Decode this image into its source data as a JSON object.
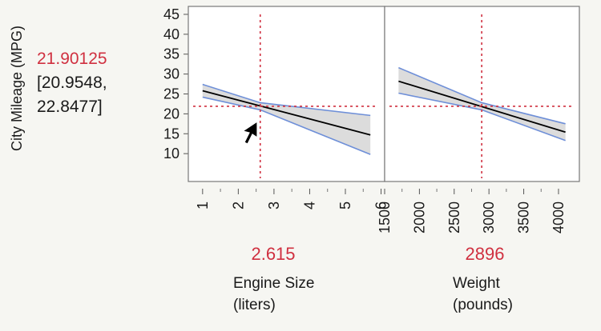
{
  "response": {
    "label": "City Mileage (MPG)",
    "predicted": "21.90125",
    "ci_line1": "[20.9548,",
    "ci_line2": "22.8477]"
  },
  "colors": {
    "current": "#d03040",
    "band_fill": "#dcdcdc",
    "band_edge": "#6e8fd8",
    "line": "#000000"
  },
  "chart_data": [
    {
      "type": "line",
      "xlabel": "Engine Size (liters)",
      "xlabel_lines": [
        "Engine Size",
        "(liters)"
      ],
      "current_x": "2.615",
      "current_y": 21.90125,
      "x_ticks": [
        1,
        2,
        3,
        4,
        5,
        6
      ],
      "xlim": [
        0.6,
        6.1
      ],
      "y_ticks": [
        10,
        15,
        20,
        25,
        30,
        35,
        40,
        45
      ],
      "ylim": [
        3,
        47
      ],
      "series": [
        {
          "role": "prediction",
          "x": [
            1,
            5.7
          ],
          "y": [
            25.8,
            14.7
          ]
        },
        {
          "role": "upper_ci",
          "x": [
            1,
            2.615,
            5.7
          ],
          "y": [
            27.4,
            22.8,
            19.6
          ]
        },
        {
          "role": "lower_ci",
          "x": [
            1,
            2.615,
            5.7
          ],
          "y": [
            24.2,
            21.0,
            9.8
          ]
        }
      ],
      "grid": false
    },
    {
      "type": "line",
      "xlabel": "Weight (pounds)",
      "xlabel_lines": [
        "Weight",
        "(pounds)"
      ],
      "current_x": "2896",
      "current_y": 21.90125,
      "x_ticks": [
        1500,
        2000,
        2500,
        3000,
        3500,
        4000
      ],
      "xlim": [
        1500,
        4300
      ],
      "y_ticks": [
        10,
        15,
        20,
        25,
        30,
        35,
        40,
        45
      ],
      "ylim": [
        3,
        47
      ],
      "series": [
        {
          "role": "prediction",
          "x": [
            1700,
            4100
          ],
          "y": [
            28.2,
            15.4
          ]
        },
        {
          "role": "upper_ci",
          "x": [
            1700,
            2896,
            4100
          ],
          "y": [
            31.6,
            22.8,
            17.5
          ]
        },
        {
          "role": "lower_ci",
          "x": [
            1700,
            2896,
            4100
          ],
          "y": [
            25.2,
            21.0,
            13.3
          ]
        }
      ],
      "grid": false
    }
  ]
}
